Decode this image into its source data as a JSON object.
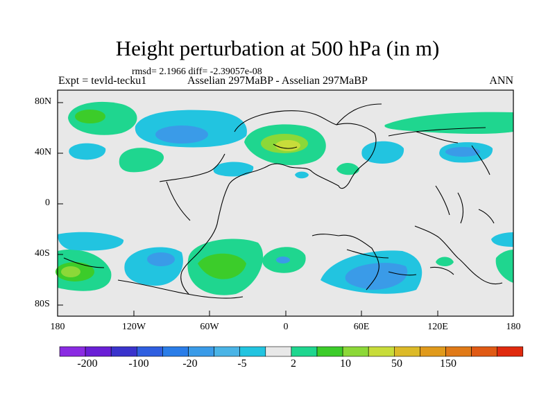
{
  "title": "Height perturbation at 500 hPa (in m)",
  "stats": "rmsd= 2.1966 diff= -2.39057e-08",
  "left_label": "Expt = tevld-tecku1",
  "center_label": "Asselian 297MaBP - Asselian 297MaBP",
  "right_label": "ANN",
  "y_ticks": [
    "80N",
    "40N",
    "0",
    "40S",
    "80S"
  ],
  "x_ticks": [
    "180",
    "120W",
    "60W",
    "0",
    "60E",
    "120E",
    "180"
  ],
  "colorbar": {
    "colors": [
      "#8a2be2",
      "#6a1fd6",
      "#3a33cc",
      "#2f5fe0",
      "#2a7de8",
      "#3a9be8",
      "#4ab4e6",
      "#22c4e0",
      "#e8e8e8",
      "#1fd68f",
      "#3ccc2a",
      "#8cd838",
      "#c8dc3a",
      "#dcba28",
      "#e09a1c",
      "#e07a18",
      "#e05a14",
      "#e02a0e"
    ],
    "labels": [
      "-200",
      "-100",
      "-20",
      "-5",
      "2",
      "10",
      "50",
      "150"
    ]
  }
}
